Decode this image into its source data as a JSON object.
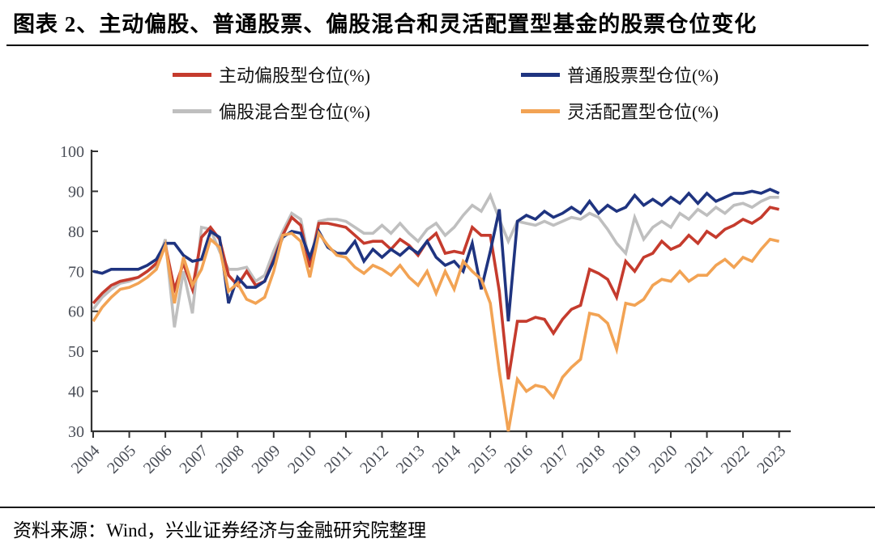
{
  "page": {
    "title": "图表 2、主动偏股、普通股票、偏股混合和灵活配置型基金的股票仓位变化",
    "source": "资料来源：Wind，兴业证券经济与金融研究院整理"
  },
  "colors": {
    "red": "#C53B2D",
    "blue": "#1F3480",
    "gray": "#BFBFBF",
    "orange": "#F2A354",
    "axis": "#333333",
    "tick_label": "#4A4E57"
  },
  "chart_data": {
    "type": "line",
    "title": "图表 2、主动偏股、普通股票、偏股混合和灵活配置型基金的股票仓位变化",
    "x_unit": "quarterly",
    "x_start_year": 2004,
    "x_tick_labels": [
      "2004",
      "2005",
      "2006",
      "2007",
      "2008",
      "2009",
      "2010",
      "2011",
      "2012",
      "2013",
      "2014",
      "2015",
      "2016",
      "2017",
      "2018",
      "2019",
      "2020",
      "2021",
      "2022",
      "2023"
    ],
    "ylim": [
      30,
      100
    ],
    "yticks": [
      30,
      40,
      50,
      60,
      70,
      80,
      90,
      100
    ],
    "grid": false,
    "legend_position": "top",
    "source_note": "资料来源：Wind，兴业证券经济与金融研究院整理",
    "series": [
      {
        "name": "主动偏股型仓位(%)",
        "key": "active-equity",
        "color": "#C53B2D",
        "z": 2,
        "values": [
          62,
          64.5,
          66.5,
          67.5,
          68,
          68.5,
          70,
          72,
          76.5,
          65.5,
          72,
          65.5,
          78.5,
          81,
          78,
          69,
          66.5,
          70,
          66.5,
          67.5,
          73,
          79,
          83.5,
          81.5,
          71,
          82,
          82,
          81.5,
          81,
          79,
          77,
          77.5,
          77.5,
          75.5,
          78,
          76.5,
          74,
          77.5,
          79.5,
          74.5,
          75,
          74.5,
          81,
          79,
          79,
          65,
          43,
          57.5,
          57.5,
          58.5,
          58,
          54.5,
          58,
          60.5,
          61.5,
          70.5,
          69.5,
          68,
          63.5,
          72.5,
          70,
          73.5,
          74.5,
          77.5,
          75.5,
          76.5,
          79,
          77,
          80,
          78.5,
          80.5,
          81.5,
          83,
          82,
          83.5,
          86,
          85.5
        ]
      },
      {
        "name": "普通股票型仓位(%)",
        "key": "common-stock",
        "color": "#1F3480",
        "z": 3,
        "values": [
          70,
          69.5,
          70.5,
          70.5,
          70.5,
          70.5,
          71.5,
          73,
          77,
          77,
          74,
          72.5,
          73,
          80,
          78.5,
          62,
          68.5,
          66,
          66,
          67.5,
          72.5,
          78.5,
          80,
          79.5,
          73.5,
          80,
          76,
          74.5,
          74.5,
          77.5,
          72.5,
          75.5,
          73.5,
          75.5,
          74,
          76,
          74.5,
          77.5,
          73.5,
          71.5,
          72.5,
          70,
          77,
          65.5,
          75,
          85.5,
          57.5,
          82.5,
          84,
          83,
          85,
          83.5,
          84.5,
          86,
          84.5,
          87.5,
          84.5,
          86.5,
          85,
          86,
          89,
          86.5,
          88,
          86.5,
          88.5,
          87,
          89.5,
          87,
          89.5,
          87.5,
          88.5,
          89.5,
          89.5,
          90,
          89.5,
          90.5,
          89.5
        ]
      },
      {
        "name": "偏股混合型仓位(%)",
        "key": "equity-hybrid",
        "color": "#BFBFBF",
        "z": 1,
        "values": [
          60.5,
          63.5,
          65.5,
          67,
          67.5,
          68.5,
          70,
          71.5,
          78,
          56,
          70,
          59.5,
          81,
          80.5,
          75,
          70.5,
          70.5,
          71,
          67.5,
          69,
          75,
          80,
          84.5,
          83,
          72,
          82.5,
          83,
          83,
          82.5,
          81,
          79.5,
          79.5,
          81.5,
          79.5,
          82,
          79.5,
          77.5,
          80.5,
          82,
          79,
          81,
          84,
          86.5,
          85,
          89,
          83,
          77.5,
          82.5,
          82,
          81.5,
          82.5,
          81.5,
          82.5,
          83.5,
          83,
          84.5,
          83.5,
          80.5,
          77,
          74.5,
          83.5,
          78,
          81,
          82.5,
          81,
          84.5,
          83,
          85.5,
          84,
          86,
          84.5,
          86.5,
          87,
          86,
          87.5,
          88.5,
          88.5
        ]
      },
      {
        "name": "灵活配置型仓位(%)",
        "key": "flexible-allocation",
        "color": "#F2A354",
        "z": 4,
        "values": [
          57.5,
          61,
          63.5,
          65.5,
          66,
          67,
          68.5,
          70.5,
          76.5,
          62,
          73.5,
          66.5,
          70.5,
          78,
          76,
          65,
          67,
          63,
          62,
          63.5,
          70,
          79,
          79.5,
          77.5,
          68.5,
          79.5,
          76.5,
          74,
          73.5,
          71,
          69.5,
          71.5,
          70.5,
          69,
          71.5,
          68.5,
          66.5,
          70,
          64.5,
          70,
          65.5,
          72.5,
          70,
          68,
          62,
          45,
          30,
          43,
          40,
          41.5,
          41,
          38.5,
          43.5,
          46,
          48,
          59.5,
          59,
          57,
          50.5,
          62,
          61.5,
          63,
          66.5,
          68,
          67.5,
          70,
          67.5,
          69,
          69,
          71.5,
          73,
          71,
          73.5,
          72.5,
          75.5,
          78,
          77.5
        ]
      }
    ]
  }
}
